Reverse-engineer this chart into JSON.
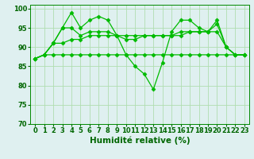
{
  "series": [
    {
      "y": [
        87,
        88,
        91,
        95,
        99,
        95,
        97,
        98,
        97,
        93,
        88,
        85,
        83,
        79,
        86,
        94,
        97,
        97,
        95,
        94,
        97,
        90,
        88,
        88
      ]
    },
    {
      "y": [
        87,
        88,
        91,
        95,
        95,
        93,
        94,
        94,
        94,
        93,
        92,
        92,
        93,
        93,
        93,
        93,
        94,
        94,
        94,
        94,
        96,
        90,
        88,
        88
      ]
    },
    {
      "y": [
        87,
        88,
        91,
        91,
        92,
        92,
        93,
        93,
        93,
        93,
        93,
        93,
        93,
        93,
        93,
        93,
        93,
        94,
        94,
        94,
        94,
        90,
        88,
        88
      ]
    },
    {
      "y": [
        87,
        88,
        88,
        88,
        88,
        88,
        88,
        88,
        88,
        88,
        88,
        88,
        88,
        88,
        88,
        88,
        88,
        88,
        88,
        88,
        88,
        88,
        88,
        88
      ]
    }
  ],
  "x": [
    0,
    1,
    2,
    3,
    4,
    5,
    6,
    7,
    8,
    9,
    10,
    11,
    12,
    13,
    14,
    15,
    16,
    17,
    18,
    19,
    20,
    21,
    22,
    23
  ],
  "xlim": [
    -0.5,
    23.5
  ],
  "ylim": [
    70,
    101
  ],
  "yticks": [
    70,
    75,
    80,
    85,
    90,
    95,
    100
  ],
  "xlabel": "Humidité relative (%)",
  "xlabel_color": "#006600",
  "xlabel_fontsize": 7.5,
  "grid_color": "#b0ddb0",
  "bg_color": "#dff0f0",
  "tick_color": "#006600",
  "tick_fontsize": 6.0,
  "line_color": "#00bb00",
  "marker_color": "#00bb00",
  "linewidth": 0.9,
  "markersize": 2.5
}
